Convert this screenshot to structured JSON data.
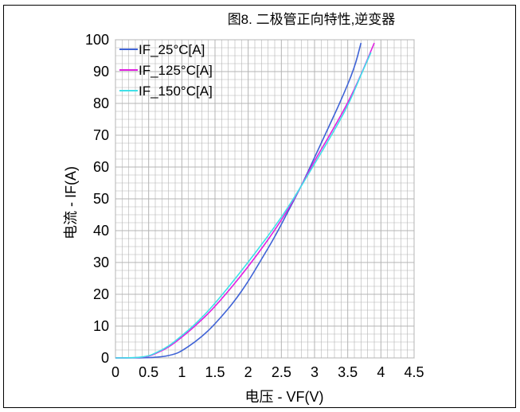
{
  "chart_data": {
    "type": "line",
    "title": "图8. 二极管正向特性,逆变器",
    "xlabel": "电压 - VF(V)",
    "ylabel": "电流 - IF(A)",
    "xlim": [
      0,
      4.5
    ],
    "ylim": [
      0,
      100
    ],
    "xticks": [
      "0",
      "0.5",
      "1",
      "1.5",
      "2",
      "2.5",
      "3",
      "3.5",
      "4",
      "4.5"
    ],
    "yticks": [
      "0",
      "10",
      "20",
      "30",
      "40",
      "50",
      "60",
      "70",
      "80",
      "90",
      "100"
    ],
    "grid": true,
    "legend_position": "top-left",
    "series": [
      {
        "name": "IF_25°C[A]",
        "color": "#3f63d6",
        "x": [
          0,
          0.4,
          0.7,
          0.9,
          1.0,
          1.2,
          1.4,
          1.6,
          1.8,
          2.0,
          2.2,
          2.4,
          2.6,
          2.8,
          3.0,
          3.2,
          3.4,
          3.6,
          3.7
        ],
        "y": [
          0,
          0,
          0.3,
          1.2,
          2.2,
          5,
          8.5,
          13,
          18,
          24,
          31,
          38,
          46,
          54,
          63,
          72,
          81,
          91,
          99
        ]
      },
      {
        "name": "IF_125°C[A]",
        "color": "#e020e0",
        "x": [
          0,
          0.3,
          0.5,
          0.6,
          0.8,
          1.0,
          1.2,
          1.5,
          2.0,
          2.5,
          2.8,
          3.0,
          3.2,
          3.5,
          3.7,
          3.9
        ],
        "y": [
          0,
          0,
          0.5,
          1.3,
          3.3,
          6.5,
          10,
          16,
          28.5,
          43,
          54,
          62,
          69,
          80,
          89,
          99
        ]
      },
      {
        "name": "IF_150°C[A]",
        "color": "#40e0e8",
        "x": [
          0,
          0.3,
          0.5,
          0.6,
          0.8,
          1.0,
          1.2,
          1.5,
          2.0,
          2.5,
          2.8,
          3.0,
          3.2,
          3.5,
          3.7,
          3.85
        ],
        "y": [
          0,
          0,
          0.6,
          1.5,
          3.6,
          7,
          10.5,
          17,
          30,
          44,
          54,
          61,
          68,
          79,
          89,
          96
        ]
      }
    ]
  }
}
